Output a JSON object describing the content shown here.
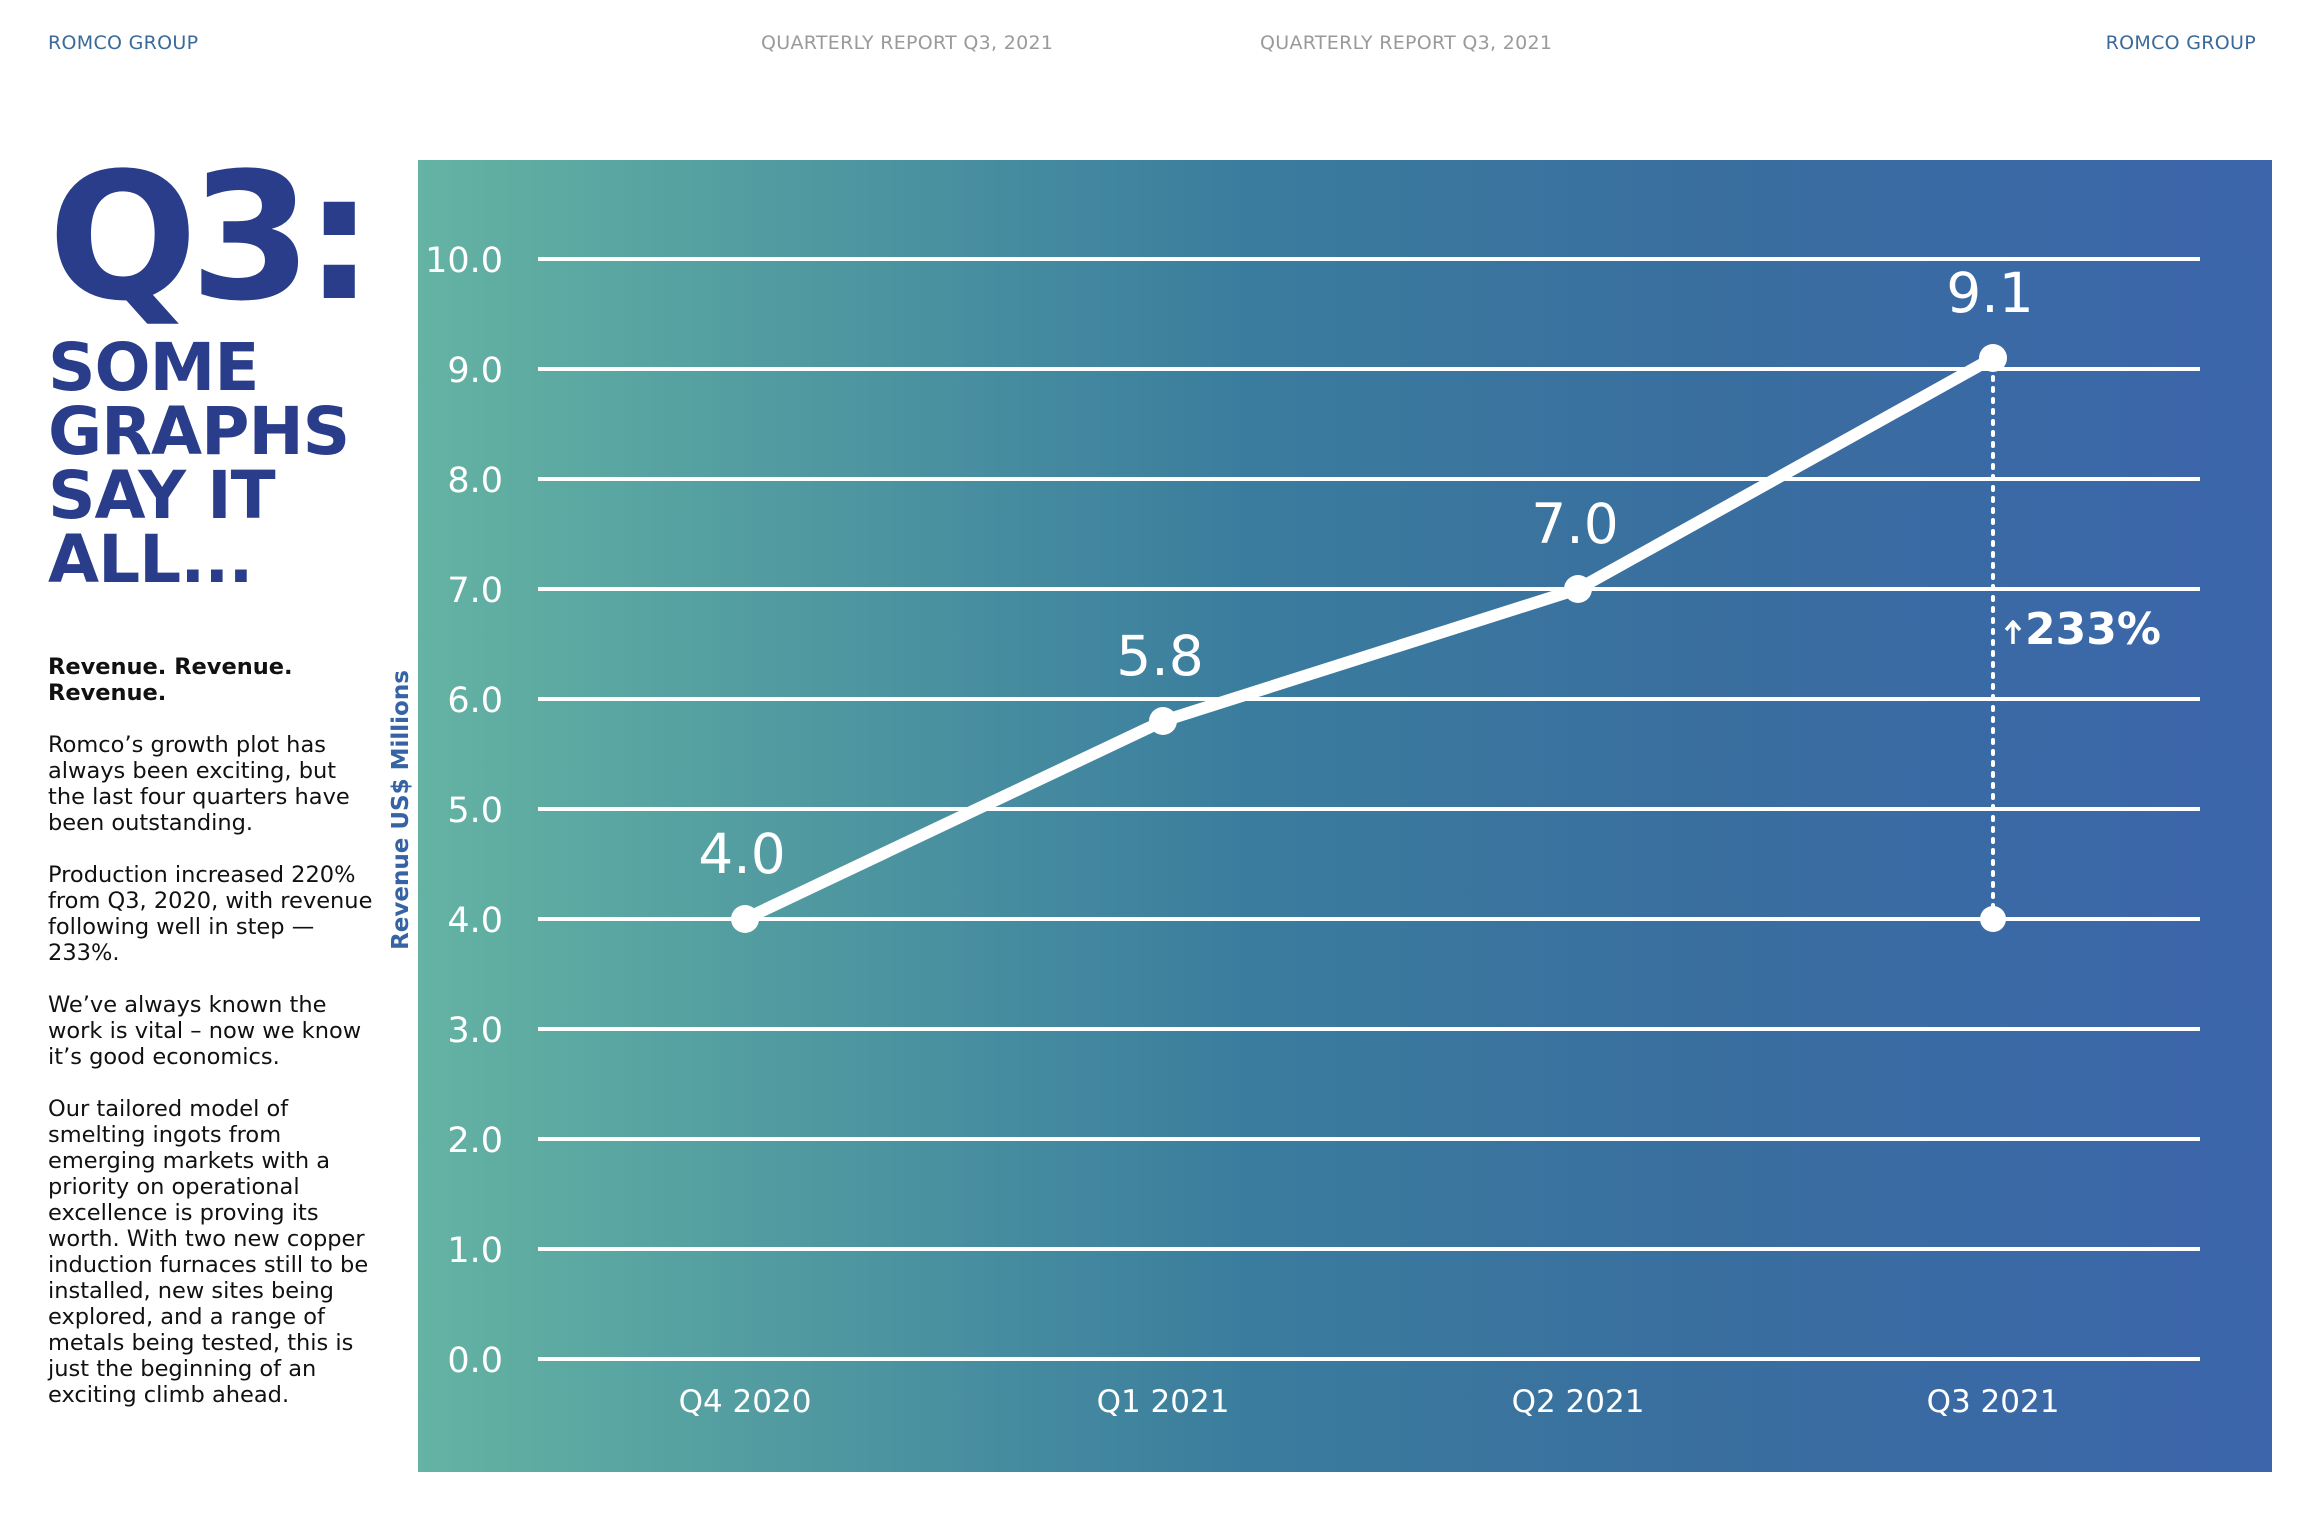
{
  "header": {
    "brand_left": "ROMCO GROUP",
    "report_left": "QUARTERLY REPORT Q3, 2021",
    "report_right": "QUARTERLY REPORT Q3, 2021",
    "brand_right": "ROMCO GROUP"
  },
  "sidebar": {
    "big_title": "Q3:",
    "headline_lines": [
      "SOME",
      "GRAPHS",
      "SAY IT",
      "ALL..."
    ],
    "lead": "Revenue. Revenue. Revenue.",
    "paragraphs": [
      "Romco’s growth plot has always been exciting, but the last four quarters have been outstanding.",
      "Production increased 220% from Q3, 2020, with revenue following well in step — 233%.",
      "We’ve always known the work is vital – now we know it’s good economics.",
      "Our tailored model of smelting ingots from emerging markets with a priority on operational excellence is proving its worth. With two new copper induction furnaces still to be installed, new sites being explored, and a range of metals being tested, this is just the beginning of an exciting climb ahead."
    ]
  },
  "colors": {
    "brand": "#293d8a",
    "axis_title": "#3563a4",
    "gradient_start": "#64b3a3",
    "gradient_end": "#3c65ab",
    "line": "#ffffff"
  },
  "chart_data": {
    "type": "line",
    "title": "",
    "xlabel": "",
    "ylabel": "Revenue US$ Millions",
    "categories": [
      "Q4 2020",
      "Q1 2021",
      "Q2 2021",
      "Q3 2021"
    ],
    "values": [
      4.0,
      5.8,
      7.0,
      9.1
    ],
    "data_labels": [
      "4.0",
      "5.8",
      "7.0",
      "9.1"
    ],
    "ylim": [
      0,
      10
    ],
    "yticks": [
      "0.0",
      "1.0",
      "2.0",
      "3.0",
      "4.0",
      "5.0",
      "6.0",
      "7.0",
      "8.0",
      "9.0",
      "10.0"
    ],
    "grid": true,
    "legend": "none",
    "annotation": {
      "text": "233%",
      "arrow": "up",
      "category": "Q3 2021",
      "from_value": 4.0,
      "to_value": 9.1
    }
  }
}
